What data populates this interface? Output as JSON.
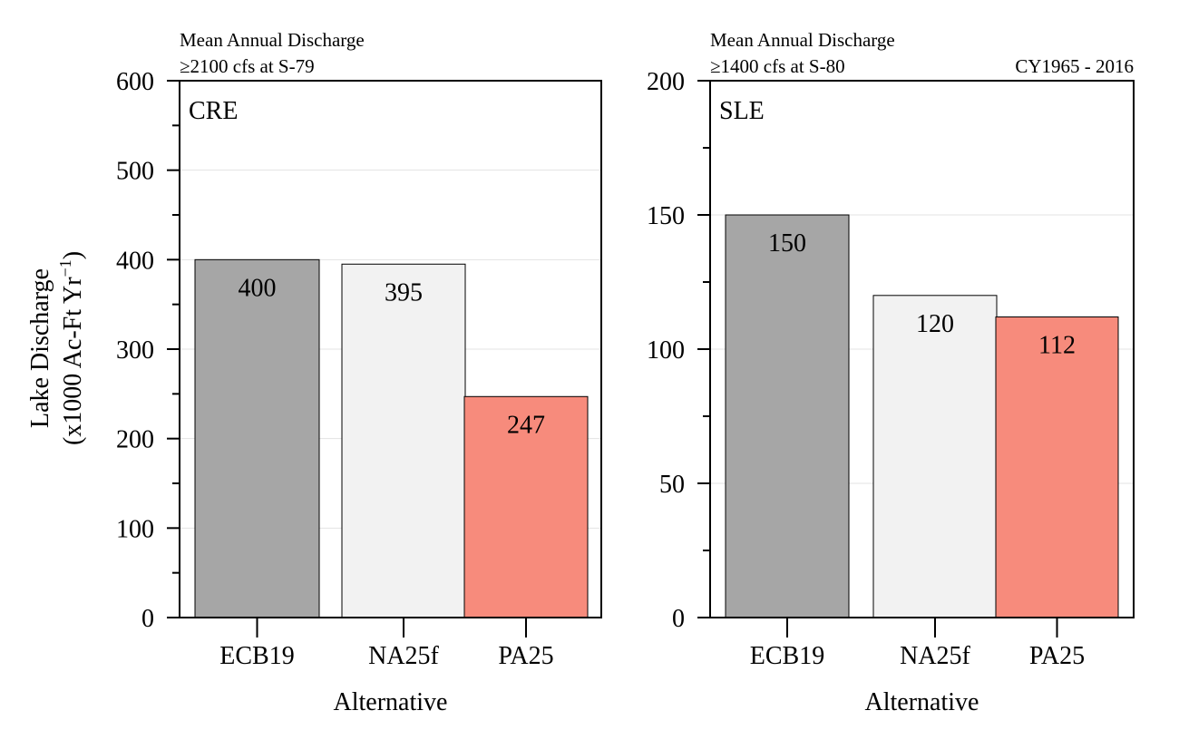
{
  "chart_data": [
    {
      "type": "bar",
      "panel_label": "CRE",
      "subtitle_line1": "Mean Annual Discharge",
      "subtitle_line2": "≥2100 cfs at S-79",
      "period": "",
      "categories": [
        "ECB19",
        "NA25f",
        "PA25"
      ],
      "values": [
        400,
        395,
        247
      ],
      "data_labels": [
        "400",
        "395",
        "247"
      ],
      "colors": [
        "#a6a6a6",
        "#f2f2f2",
        "#f78b7c"
      ],
      "ylim": [
        0,
        600
      ],
      "yticks": [
        0,
        100,
        200,
        300,
        400,
        500,
        600
      ],
      "minor_tick_step": 50,
      "xlabel": "Alternative",
      "ylabel_line1": "Lake Discharge",
      "ylabel_line2_prefix": "(x1000 Ac-Ft Yr",
      "ylabel_line2_sup": "−1",
      "ylabel_line2_suffix": ")",
      "grid": true
    },
    {
      "type": "bar",
      "panel_label": "SLE",
      "subtitle_line1": "Mean Annual Discharge",
      "subtitle_line2": "≥1400 cfs at S-80",
      "period": "CY1965 - 2016",
      "categories": [
        "ECB19",
        "NA25f",
        "PA25"
      ],
      "values": [
        150,
        120,
        112
      ],
      "data_labels": [
        "150",
        "120",
        "112"
      ],
      "colors": [
        "#a6a6a6",
        "#f2f2f2",
        "#f78b7c"
      ],
      "ylim": [
        0,
        200
      ],
      "yticks": [
        0,
        50,
        100,
        150,
        200
      ],
      "minor_tick_step": 25,
      "xlabel": "Alternative",
      "grid": true
    }
  ]
}
